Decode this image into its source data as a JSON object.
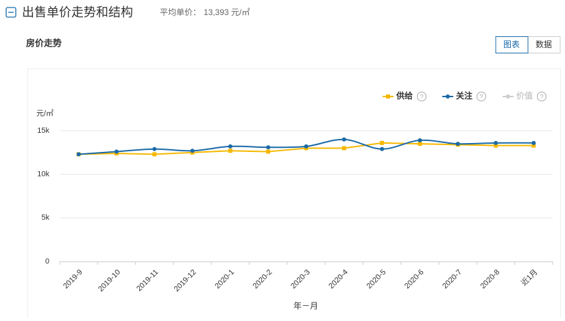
{
  "header": {
    "title": "出售单价走势和结构",
    "avg_label": "平均单价：",
    "avg_value": "13,393 元/㎡"
  },
  "section_title": "房价走势",
  "tabs": [
    "图表",
    "数据"
  ],
  "chart_data": {
    "type": "line",
    "y_label": "元/㎡",
    "x_label": "年－月",
    "categories": [
      "2019-9",
      "2019-10",
      "2019-11",
      "2019-12",
      "2020-1",
      "2020-2",
      "2020-3",
      "2020-4",
      "2020-5",
      "2020-6",
      "2020-7",
      "2020-8",
      "近1月"
    ],
    "series": [
      {
        "name": "供给",
        "color": "#f5b800",
        "smooth": false,
        "values": [
          12300,
          12400,
          12300,
          12500,
          12700,
          12600,
          13000,
          13000,
          13600,
          13500,
          13400,
          13300,
          13300
        ]
      },
      {
        "name": "关注",
        "color": "#1a6aa8",
        "smooth": true,
        "values": [
          12300,
          12600,
          12900,
          12700,
          13200,
          13100,
          13200,
          14000,
          12900,
          13900,
          13500,
          13600,
          13600
        ]
      },
      {
        "name": "价值",
        "color": "#cccccc",
        "visible": false
      }
    ],
    "ylim": [
      0,
      15000
    ],
    "yticks": [
      {
        "value": 0,
        "label": "0"
      },
      {
        "value": 5000,
        "label": "5k"
      },
      {
        "value": 10000,
        "label": "10k"
      },
      {
        "value": 15000,
        "label": "15k"
      }
    ],
    "grid": true,
    "legend": "top-right"
  }
}
